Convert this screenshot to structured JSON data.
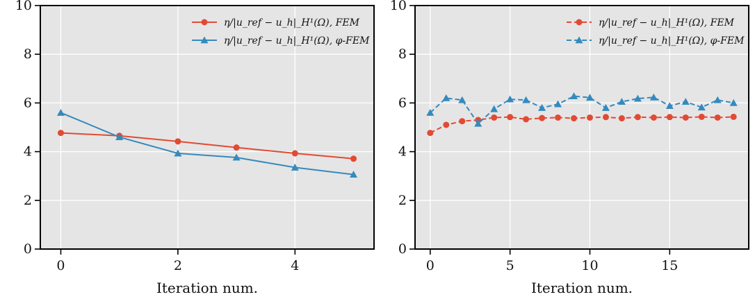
{
  "chart_data": [
    {
      "type": "line",
      "xlabel": "Iteration num.",
      "ylabel": "",
      "title": "",
      "xlim": [
        -0.35,
        5.35
      ],
      "ylim": [
        0,
        10
      ],
      "xticks": [
        0,
        2,
        4
      ],
      "yticks": [
        0,
        2,
        4,
        6,
        8,
        10
      ],
      "grid": true,
      "legend_position": "top-right",
      "series": [
        {
          "name": "η/|u_ref − u_h|_H¹(Ω), FEM",
          "color": "#e24a33",
          "marker": "circle",
          "linestyle": "solid",
          "x": [
            0,
            1,
            2,
            3,
            4,
            5
          ],
          "y": [
            4.77,
            4.65,
            4.42,
            4.17,
            3.93,
            3.71
          ]
        },
        {
          "name": "η/|u_ref − u_h|_H¹(Ω), φ-FEM",
          "color": "#348abd",
          "marker": "triangle",
          "linestyle": "solid",
          "x": [
            0,
            1,
            2,
            3,
            4,
            5
          ],
          "y": [
            5.6,
            4.6,
            3.93,
            3.76,
            3.35,
            3.06
          ]
        }
      ]
    },
    {
      "type": "line",
      "xlabel": "Iteration num.",
      "ylabel": "",
      "title": "",
      "xlim": [
        -0.95,
        19.95
      ],
      "ylim": [
        0,
        10
      ],
      "xticks": [
        0,
        5,
        10,
        15
      ],
      "yticks": [
        0,
        2,
        4,
        6,
        8,
        10
      ],
      "grid": true,
      "legend_position": "top-right",
      "series": [
        {
          "name": "η/|u_ref − u_h|_H¹(Ω), FEM",
          "color": "#e24a33",
          "marker": "circle",
          "linestyle": "dashed",
          "x": [
            0,
            1,
            2,
            3,
            4,
            5,
            6,
            7,
            8,
            9,
            10,
            11,
            12,
            13,
            14,
            15,
            16,
            17,
            18,
            19
          ],
          "y": [
            4.77,
            5.1,
            5.25,
            5.3,
            5.4,
            5.42,
            5.33,
            5.38,
            5.4,
            5.37,
            5.4,
            5.42,
            5.37,
            5.42,
            5.4,
            5.42,
            5.4,
            5.43,
            5.4,
            5.43
          ]
        },
        {
          "name": "η/|u_ref − u_h|_H¹(Ω), φ-FEM",
          "color": "#348abd",
          "marker": "triangle",
          "linestyle": "dashed",
          "x": [
            0,
            1,
            2,
            3,
            4,
            5,
            6,
            7,
            8,
            9,
            10,
            11,
            12,
            13,
            14,
            15,
            16,
            17,
            18,
            19
          ],
          "y": [
            5.6,
            6.2,
            6.12,
            5.15,
            5.75,
            6.15,
            6.12,
            5.8,
            5.95,
            6.28,
            6.22,
            5.8,
            6.05,
            6.18,
            6.23,
            5.88,
            6.05,
            5.82,
            6.12,
            6.0
          ]
        }
      ]
    }
  ]
}
